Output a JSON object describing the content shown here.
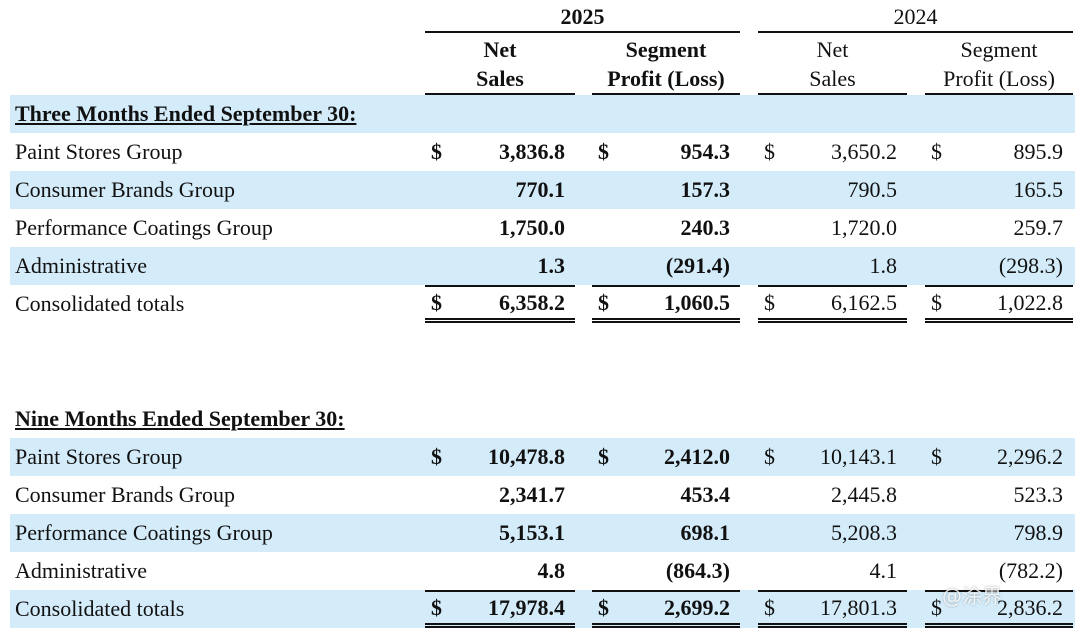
{
  "years": {
    "y2025": "2025",
    "y2024": "2024"
  },
  "headers": {
    "net_sales": [
      "Net",
      "Sales"
    ],
    "segment_profit": [
      "Segment",
      "Profit (Loss)"
    ]
  },
  "sections": [
    {
      "title": "Three Months Ended September 30:",
      "rows": [
        {
          "label": "Paint Stores Group",
          "dollar": true,
          "values": [
            "3,836.8",
            "954.3",
            "3,650.2",
            "895.9"
          ]
        },
        {
          "label": "Consumer Brands Group",
          "values": [
            "770.1",
            "157.3",
            "790.5",
            "165.5"
          ]
        },
        {
          "label": "Performance Coatings Group",
          "values": [
            "1,750.0",
            "240.3",
            "1,720.0",
            "259.7"
          ]
        },
        {
          "label": "Administrative",
          "values": [
            "1.3",
            "(291.4)",
            "1.8",
            "(298.3)"
          ]
        },
        {
          "label": "Consolidated totals",
          "dollar": true,
          "total": true,
          "values": [
            "6,358.2",
            "1,060.5",
            "6,162.5",
            "1,022.8"
          ]
        }
      ]
    },
    {
      "title": "Nine Months Ended September 30:",
      "rows": [
        {
          "label": "Paint Stores Group",
          "dollar": true,
          "values": [
            "10,478.8",
            "2,412.0",
            "10,143.1",
            "2,296.2"
          ]
        },
        {
          "label": "Consumer Brands Group",
          "values": [
            "2,341.7",
            "453.4",
            "2,445.8",
            "523.3"
          ]
        },
        {
          "label": "Performance Coatings Group",
          "values": [
            "5,153.1",
            "698.1",
            "5,208.3",
            "798.9"
          ]
        },
        {
          "label": "Administrative",
          "values": [
            "4.8",
            "(864.3)",
            "4.1",
            "(782.2)"
          ]
        },
        {
          "label": "Consolidated totals",
          "dollar": true,
          "total": true,
          "values": [
            "17,978.4",
            "2,699.2",
            "17,801.3",
            "2,836.2"
          ]
        }
      ]
    }
  ],
  "currency_symbol": "$",
  "watermark": "@涂界"
}
